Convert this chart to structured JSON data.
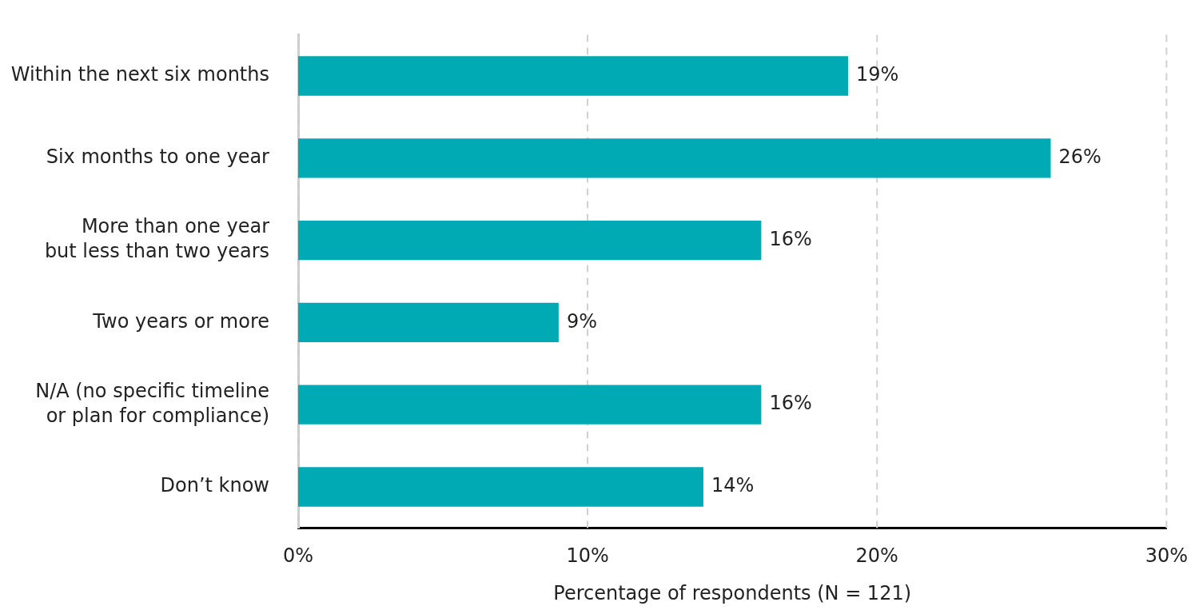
{
  "chart_data": {
    "type": "bar",
    "orientation": "horizontal",
    "xlabel": "Percentage of respondents (N = 121)",
    "categories": [
      "Within the next six months",
      "Six months to one year",
      "More than one year\nbut less than two years",
      "Two years or more",
      "N/A (no specific timeline\nor plan for compliance)",
      "Don’t know"
    ],
    "values": [
      19,
      26,
      16,
      9,
      16,
      14
    ],
    "value_labels": [
      "19%",
      "26%",
      "16%",
      "9%",
      "16%",
      "14%"
    ],
    "color": "#00aab5",
    "xlim": [
      0,
      30
    ],
    "xticks": [
      {
        "value": 0,
        "label": "0%"
      },
      {
        "value": 10,
        "label": "10%"
      },
      {
        "value": 20,
        "label": "20%"
      },
      {
        "value": 30,
        "label": "30%"
      }
    ],
    "grid": "x",
    "legend": false
  }
}
